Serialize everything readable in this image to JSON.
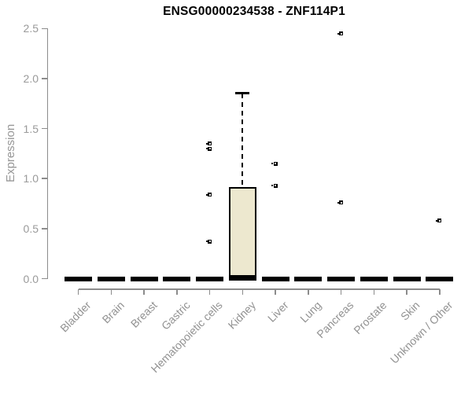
{
  "chart_data": {
    "type": "boxplot",
    "title": "ENSG00000234538 - ZNF114P1",
    "ylabel": "Expression",
    "xlabel": "",
    "ylim": [
      0,
      2.5
    ],
    "yticks": [
      "0.0",
      "0.5",
      "1.0",
      "1.5",
      "2.0",
      "2.5"
    ],
    "grid": false,
    "legend": "none",
    "categories": [
      "Bladder",
      "Brain",
      "Breast",
      "Gastric",
      "Hematopoietic cells",
      "Kidney",
      "Liver",
      "Lung",
      "Pancreas",
      "Prostate",
      "Skin",
      "Unknown / Other"
    ],
    "series": [
      {
        "category": "Bladder",
        "median": 0,
        "q1": 0,
        "q3": 0,
        "whisker_low": 0,
        "whisker_high": 0,
        "outliers": []
      },
      {
        "category": "Brain",
        "median": 0,
        "q1": 0,
        "q3": 0,
        "whisker_low": 0,
        "whisker_high": 0,
        "outliers": []
      },
      {
        "category": "Breast",
        "median": 0,
        "q1": 0,
        "q3": 0,
        "whisker_low": 0,
        "whisker_high": 0,
        "outliers": []
      },
      {
        "category": "Gastric",
        "median": 0,
        "q1": 0,
        "q3": 0,
        "whisker_low": 0,
        "whisker_high": 0,
        "outliers": []
      },
      {
        "category": "Hematopoietic cells",
        "median": 0,
        "q1": 0,
        "q3": 0,
        "whisker_low": 0,
        "whisker_high": 0,
        "outliers": [
          1.35,
          1.3,
          0.84,
          0.37
        ]
      },
      {
        "category": "Kidney",
        "median": 0.01,
        "q1": 0,
        "q3": 0.91,
        "whisker_low": 0,
        "whisker_high": 1.85,
        "outliers": []
      },
      {
        "category": "Liver",
        "median": 0,
        "q1": 0,
        "q3": 0,
        "whisker_low": 0,
        "whisker_high": 0,
        "outliers": [
          1.15,
          0.93
        ]
      },
      {
        "category": "Lung",
        "median": 0,
        "q1": 0,
        "q3": 0,
        "whisker_low": 0,
        "whisker_high": 0,
        "outliers": []
      },
      {
        "category": "Pancreas",
        "median": 0,
        "q1": 0,
        "q3": 0,
        "whisker_low": 0,
        "whisker_high": 0,
        "outliers": [
          2.45,
          0.76
        ]
      },
      {
        "category": "Prostate",
        "median": 0,
        "q1": 0,
        "q3": 0,
        "whisker_low": 0,
        "whisker_high": 0,
        "outliers": []
      },
      {
        "category": "Skin",
        "median": 0,
        "q1": 0,
        "q3": 0,
        "whisker_low": 0,
        "whisker_high": 0,
        "outliers": []
      },
      {
        "category": "Unknown / Other",
        "median": 0,
        "q1": 0,
        "q3": 0,
        "whisker_low": 0,
        "whisker_high": 0,
        "outliers": [
          0.58
        ]
      }
    ],
    "colors": {
      "box_fill": "#EDE8CF",
      "box_border": "#000000",
      "median": "#000000",
      "outlier": "#000000",
      "axis": "#8C8C8C",
      "tick_label": "#9A9A9A",
      "title": "#000000"
    }
  }
}
